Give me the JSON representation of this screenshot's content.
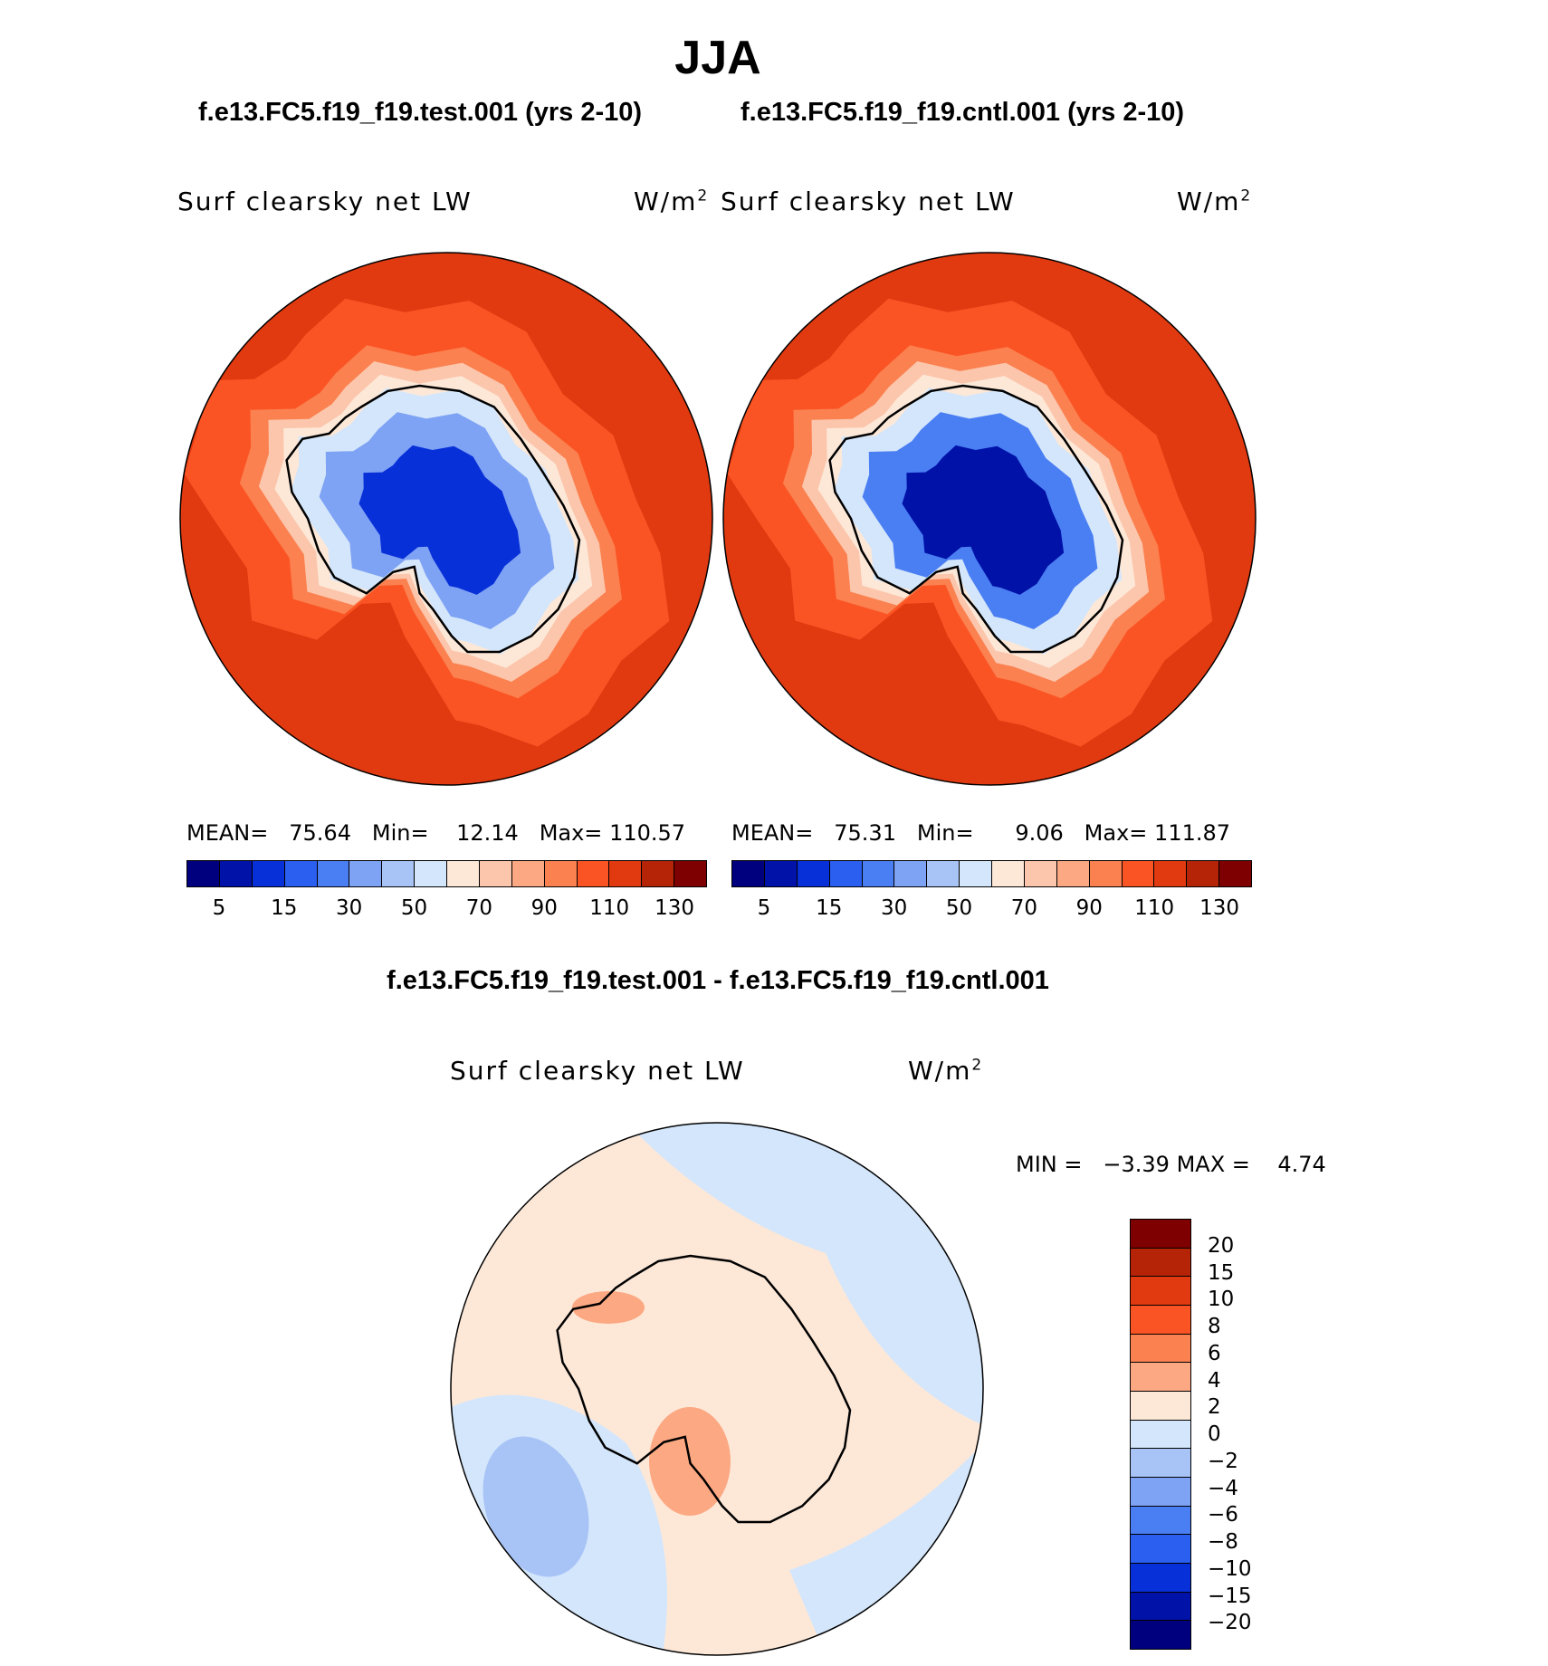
{
  "title": "JJA",
  "panels": [
    {
      "case_title": "f.e13.FC5.f19_f19.test.001 (yrs 2-10)",
      "variable": "Surf clearsky net LW",
      "units": "W/m",
      "units_sup": "2",
      "mean_label": "MEAN=",
      "mean": "75.64",
      "min_label": "Min=",
      "min": "12.14",
      "max_label": "Max=",
      "max": "110.57",
      "field_profile": [
        12.14,
        30,
        50,
        65,
        78,
        90,
        100,
        106,
        110.57
      ]
    },
    {
      "case_title": "f.e13.FC5.f19_f19.cntl.001 (yrs 2-10)",
      "variable": "Surf clearsky net LW",
      "units": "W/m",
      "units_sup": "2",
      "mean_label": "MEAN=",
      "mean": "75.31",
      "min_label": "Min=",
      "min": "9.06",
      "max_label": "Max=",
      "max": "111.87",
      "field_profile": [
        9.06,
        28,
        50,
        65,
        78,
        90,
        100,
        107,
        111.87
      ]
    }
  ],
  "colorbar_top": {
    "colors": [
      "#00007f",
      "#0012a8",
      "#0830d8",
      "#2a5ff0",
      "#4a7ef3",
      "#7ea2f4",
      "#a8c4f7",
      "#d4e6fb",
      "#fde8d8",
      "#fcc6ac",
      "#fca882",
      "#fb8150",
      "#fb5424",
      "#e23a10",
      "#b52406",
      "#7f0000"
    ],
    "tick_labels": [
      "5",
      "15",
      "30",
      "50",
      "70",
      "90",
      "110",
      "130"
    ]
  },
  "diff": {
    "title": "f.e13.FC5.f19_f19.test.001 - f.e13.FC5.f19_f19.cntl.001",
    "variable": "Surf clearsky net LW",
    "units": "W/m",
    "units_sup": "2",
    "min_label": "MIN =",
    "min": "−3.39",
    "max_label": "MAX =",
    "max": "4.74",
    "colorbar": {
      "colors": [
        "#7f0000",
        "#b52406",
        "#e23a10",
        "#fb5424",
        "#fb8150",
        "#fca882",
        "#fde8d8",
        "#d4e6fb",
        "#a8c4f7",
        "#7ea2f4",
        "#4a7ef3",
        "#2a5ff0",
        "#0830d8",
        "#0012a8",
        "#00007f"
      ],
      "tick_labels": [
        "20",
        "15",
        "10",
        "8",
        "6",
        "4",
        "2",
        "0",
        "−2",
        "−4",
        "−6",
        "−8",
        "−10",
        "−15",
        "−20"
      ]
    }
  }
}
